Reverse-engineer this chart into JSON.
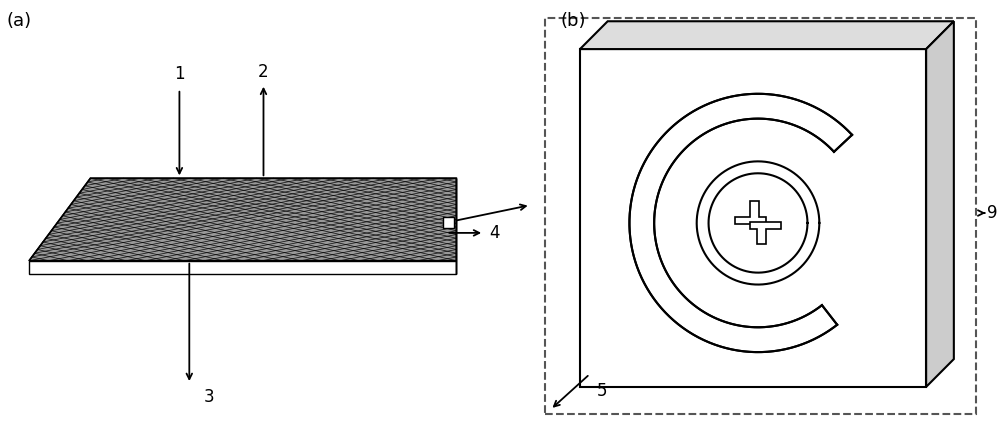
{
  "fig_width": 10.0,
  "fig_height": 4.33,
  "bg_color": "#ffffff",
  "label_a": "(a)",
  "label_b": "(b)",
  "line_color": "#000000",
  "dashed_box_color": "#555555",
  "arrow_color": "#000000"
}
